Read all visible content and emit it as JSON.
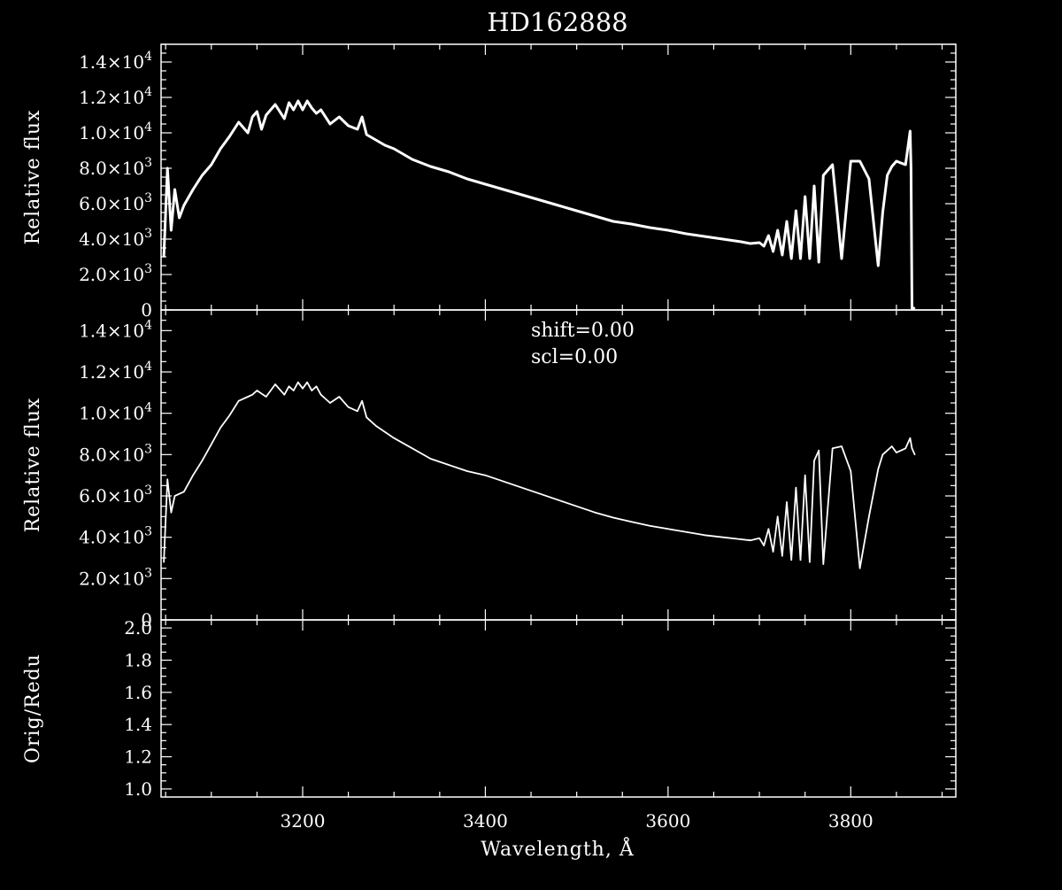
{
  "chart_data": {
    "type": "line",
    "title": "HD162888",
    "xlabel": "Wavelength, Å",
    "xlim": [
      3045,
      3915
    ],
    "x_ticks": [
      {
        "value": 3200,
        "label": "3200"
      },
      {
        "value": 3400,
        "label": "3400"
      },
      {
        "value": 3600,
        "label": "3600"
      },
      {
        "value": 3800,
        "label": "3800"
      }
    ],
    "panels": [
      {
        "id": "top",
        "ylabel": "Relative flux",
        "ylim": [
          0,
          15000
        ],
        "y_ticks": [
          {
            "value": 0,
            "label": "0"
          },
          {
            "value": 2000,
            "mant": "2.0×10",
            "exp": "3"
          },
          {
            "value": 4000,
            "mant": "4.0×10",
            "exp": "3"
          },
          {
            "value": 6000,
            "mant": "6.0×10",
            "exp": "3"
          },
          {
            "value": 8000,
            "mant": "8.0×10",
            "exp": "3"
          },
          {
            "value": 10000,
            "mant": "1.0×10",
            "exp": "4"
          },
          {
            "value": 12000,
            "mant": "1.2×10",
            "exp": "4"
          },
          {
            "value": 14000,
            "mant": "1.4×10",
            "exp": "4"
          }
        ],
        "series": [
          {
            "x": [
              3048,
              3052,
              3056,
              3060,
              3065,
              3070,
              3080,
              3090,
              3100,
              3110,
              3120,
              3130,
              3140,
              3145,
              3150,
              3155,
              3160,
              3170,
              3180,
              3185,
              3190,
              3195,
              3200,
              3205,
              3210,
              3215,
              3220,
              3230,
              3240,
              3250,
              3260,
              3265,
              3270,
              3280,
              3290,
              3300,
              3320,
              3340,
              3360,
              3380,
              3400,
              3420,
              3440,
              3460,
              3480,
              3500,
              3520,
              3540,
              3560,
              3580,
              3600,
              3620,
              3640,
              3660,
              3680,
              3690,
              3700,
              3705,
              3710,
              3715,
              3720,
              3725,
              3730,
              3735,
              3740,
              3745,
              3750,
              3755,
              3760,
              3765,
              3770,
              3780,
              3790,
              3800,
              3810,
              3820,
              3830,
              3835,
              3840,
              3845,
              3850,
              3860,
              3865,
              3866,
              3867,
              3870
            ],
            "y": [
              3000,
              8000,
              4500,
              6800,
              5200,
              5900,
              6800,
              7600,
              8200,
              9100,
              9800,
              10600,
              10000,
              10900,
              11200,
              10200,
              11000,
              11600,
              10800,
              11700,
              11300,
              11800,
              11300,
              11800,
              11400,
              11100,
              11300,
              10500,
              10900,
              10400,
              10200,
              10900,
              9900,
              9600,
              9300,
              9100,
              8500,
              8100,
              7800,
              7400,
              7100,
              6800,
              6500,
              6200,
              5900,
              5600,
              5300,
              5000,
              4850,
              4650,
              4500,
              4300,
              4150,
              4000,
              3850,
              3750,
              3800,
              3600,
              4200,
              3300,
              4500,
              3100,
              5000,
              2900,
              5600,
              2900,
              6400,
              2900,
              7000,
              2700,
              7600,
              8200,
              2900,
              8400,
              8400,
              7400,
              2500,
              5500,
              7600,
              8100,
              8400,
              8200,
              10100,
              8000,
              100,
              100
            ]
          }
        ]
      },
      {
        "id": "middle",
        "ylabel": "Relative flux",
        "ylim": [
          0,
          15000
        ],
        "y_ticks": [
          {
            "value": 0,
            "label": "0"
          },
          {
            "value": 2000,
            "mant": "2.0×10",
            "exp": "3"
          },
          {
            "value": 4000,
            "mant": "4.0×10",
            "exp": "3"
          },
          {
            "value": 6000,
            "mant": "6.0×10",
            "exp": "3"
          },
          {
            "value": 8000,
            "mant": "8.0×10",
            "exp": "3"
          },
          {
            "value": 10000,
            "mant": "1.0×10",
            "exp": "4"
          },
          {
            "value": 12000,
            "mant": "1.2×10",
            "exp": "4"
          },
          {
            "value": 14000,
            "mant": "1.4×10",
            "exp": "4"
          }
        ],
        "annotations": [
          "shift=0.00",
          "scl=0.00"
        ],
        "series": [
          {
            "x": [
              3048,
              3052,
              3056,
              3060,
              3070,
              3080,
              3090,
              3100,
              3110,
              3120,
              3130,
              3140,
              3145,
              3150,
              3160,
              3170,
              3180,
              3185,
              3190,
              3195,
              3200,
              3205,
              3210,
              3215,
              3220,
              3230,
              3240,
              3250,
              3260,
              3265,
              3270,
              3280,
              3290,
              3300,
              3320,
              3340,
              3360,
              3380,
              3400,
              3420,
              3440,
              3460,
              3480,
              3500,
              3520,
              3540,
              3560,
              3580,
              3600,
              3620,
              3640,
              3660,
              3680,
              3690,
              3700,
              3705,
              3710,
              3715,
              3720,
              3725,
              3730,
              3735,
              3740,
              3745,
              3750,
              3755,
              3760,
              3765,
              3770,
              3780,
              3790,
              3800,
              3810,
              3820,
              3830,
              3835,
              3840,
              3845,
              3850,
              3860,
              3865,
              3867,
              3870
            ],
            "y": [
              2800,
              6800,
              5200,
              6000,
              6200,
              7000,
              7700,
              8500,
              9300,
              9900,
              10600,
              10800,
              10900,
              11100,
              10800,
              11400,
              10900,
              11300,
              11100,
              11500,
              11200,
              11500,
              11100,
              11300,
              10900,
              10500,
              10800,
              10300,
              10100,
              10600,
              9800,
              9400,
              9100,
              8800,
              8300,
              7800,
              7500,
              7200,
              7000,
              6700,
              6400,
              6100,
              5800,
              5500,
              5200,
              4950,
              4750,
              4550,
              4400,
              4250,
              4100,
              4000,
              3900,
              3850,
              3950,
              3600,
              4400,
              3300,
              5000,
              3100,
              5700,
              2900,
              6400,
              2900,
              7000,
              2800,
              7700,
              8200,
              2700,
              8300,
              8400,
              7200,
              2500,
              5000,
              7300,
              8000,
              8200,
              8400,
              8100,
              8300,
              8800,
              8300,
              8000
            ]
          }
        ]
      },
      {
        "id": "bottom",
        "ylabel": "Orig/Redu",
        "ylim": [
          0.95,
          2.05
        ],
        "y_ticks": [
          {
            "value": 1.0,
            "label": "1.0"
          },
          {
            "value": 1.2,
            "label": "1.2"
          },
          {
            "value": 1.4,
            "label": "1.4"
          },
          {
            "value": 1.6,
            "label": "1.6"
          },
          {
            "value": 1.8,
            "label": "1.8"
          },
          {
            "value": 2.0,
            "label": "2.0"
          }
        ],
        "series": []
      }
    ]
  }
}
